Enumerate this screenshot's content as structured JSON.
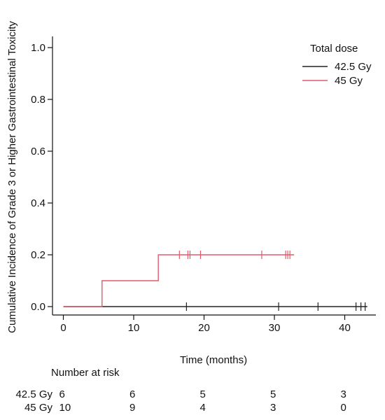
{
  "chart_data": {
    "type": "line",
    "step": true,
    "xlabel": "Time (months)",
    "ylabel": "Cumulative Incidence of Grade 3 or Higher Gastrointestinal Toxicity",
    "xlim": [
      -1.5,
      43.5
    ],
    "ylim": [
      -0.03,
      1.05
    ],
    "xticks": [
      0,
      10,
      20,
      30,
      40
    ],
    "yticks": [
      0.0,
      0.2,
      0.4,
      0.6,
      0.8,
      1.0
    ],
    "xtick_labels": [
      "0",
      "10",
      "20",
      "30",
      "40"
    ],
    "ytick_labels": [
      "0.0",
      "0.2",
      "0.4",
      "0.6",
      "0.8",
      "1.0"
    ],
    "grid": false,
    "legend": {
      "title": "Total dose",
      "position": "top-right"
    },
    "series": [
      {
        "name": "42.5 Gy",
        "color": "#222222",
        "steps": [
          [
            0,
            0.0
          ],
          [
            43.2,
            0.0
          ]
        ],
        "censored": [
          17.5,
          30.6,
          36.2,
          41.6,
          42.3,
          42.9
        ]
      },
      {
        "name": "45 Gy",
        "color": "#e05a6a",
        "steps": [
          [
            0,
            0.0
          ],
          [
            5.5,
            0.1
          ],
          [
            13.5,
            0.2
          ],
          [
            32.8,
            0.2
          ]
        ],
        "censored": [
          16.5,
          17.7,
          18.0,
          19.5,
          28.2,
          31.6,
          31.9,
          32.2
        ]
      }
    ],
    "risk_table": {
      "title": "Number at risk",
      "times": [
        0,
        10,
        20,
        30,
        40
      ],
      "rows": [
        {
          "label": "42.5 Gy",
          "values": [
            "6",
            "6",
            "5",
            "5",
            "3"
          ]
        },
        {
          "label": "45 Gy",
          "values": [
            "10",
            "9",
            "4",
            "3",
            "0"
          ]
        }
      ]
    }
  }
}
